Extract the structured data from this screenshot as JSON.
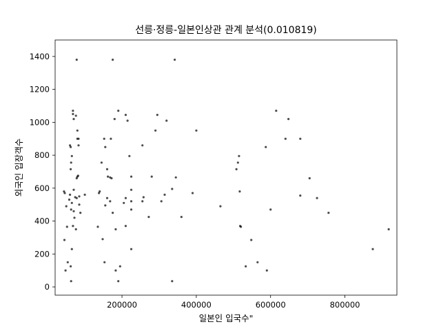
{
  "chart_data": {
    "type": "scatter",
    "title": "선릉·정릉-일본인상관 관계 분석(0.010819)",
    "xlabel": "일본인 입국수\"",
    "ylabel": "외국인 입장객수",
    "xlim": [
      20000,
      940000
    ],
    "ylim": [
      -50,
      1500
    ],
    "xticks": [
      200000,
      400000,
      600000,
      800000
    ],
    "xtick_labels": [
      "200000",
      "400000",
      "600000",
      "800000"
    ],
    "yticks": [
      0,
      200,
      400,
      600,
      800,
      1000,
      1200,
      1400
    ],
    "ytick_labels": [
      "0",
      "200",
      "400",
      "600",
      "800",
      "1000",
      "1200",
      "1400"
    ],
    "grid": false,
    "marker_color": "#000000",
    "marker_opacity": 0.7,
    "points": [
      [
        78000,
        1380
      ],
      [
        175000,
        1380
      ],
      [
        342000,
        1380
      ],
      [
        68000,
        1070
      ],
      [
        190000,
        1070
      ],
      [
        615000,
        1070
      ],
      [
        68000,
        1050
      ],
      [
        76000,
        1040
      ],
      [
        210000,
        1045
      ],
      [
        295000,
        1045
      ],
      [
        70000,
        1020
      ],
      [
        180000,
        1020
      ],
      [
        215000,
        1010
      ],
      [
        320000,
        1010
      ],
      [
        648000,
        1020
      ],
      [
        80000,
        950
      ],
      [
        290000,
        950
      ],
      [
        400000,
        950
      ],
      [
        80000,
        900
      ],
      [
        83000,
        900
      ],
      [
        152000,
        900
      ],
      [
        170000,
        900
      ],
      [
        640000,
        900
      ],
      [
        680000,
        900
      ],
      [
        60000,
        860
      ],
      [
        62000,
        850
      ],
      [
        83000,
        860
      ],
      [
        155000,
        850
      ],
      [
        255000,
        860
      ],
      [
        587000,
        850
      ],
      [
        65000,
        795
      ],
      [
        220000,
        795
      ],
      [
        515000,
        795
      ],
      [
        63000,
        755
      ],
      [
        145000,
        755
      ],
      [
        512000,
        755
      ],
      [
        62000,
        715
      ],
      [
        160000,
        715
      ],
      [
        508000,
        715
      ],
      [
        82000,
        675
      ],
      [
        80000,
        670
      ],
      [
        78000,
        660
      ],
      [
        162000,
        670
      ],
      [
        168000,
        665
      ],
      [
        172000,
        660
      ],
      [
        225000,
        670
      ],
      [
        280000,
        670
      ],
      [
        345000,
        665
      ],
      [
        705000,
        660
      ],
      [
        44000,
        580
      ],
      [
        46000,
        570
      ],
      [
        70000,
        590
      ],
      [
        100000,
        560
      ],
      [
        138000,
        570
      ],
      [
        140000,
        580
      ],
      [
        225000,
        590
      ],
      [
        315000,
        560
      ],
      [
        335000,
        595
      ],
      [
        390000,
        570
      ],
      [
        517000,
        580
      ],
      [
        680000,
        555
      ],
      [
        60000,
        560
      ],
      [
        58000,
        530
      ],
      [
        74000,
        545
      ],
      [
        78000,
        540
      ],
      [
        85000,
        550
      ],
      [
        160000,
        540
      ],
      [
        168000,
        520
      ],
      [
        210000,
        540
      ],
      [
        258000,
        545
      ],
      [
        306000,
        520
      ],
      [
        725000,
        540
      ],
      [
        65000,
        510
      ],
      [
        50000,
        490
      ],
      [
        85000,
        500
      ],
      [
        155000,
        495
      ],
      [
        205000,
        510
      ],
      [
        225000,
        520
      ],
      [
        255000,
        520
      ],
      [
        600000,
        470
      ],
      [
        465000,
        490
      ],
      [
        63000,
        470
      ],
      [
        70000,
        460
      ],
      [
        88000,
        450
      ],
      [
        175000,
        450
      ],
      [
        225000,
        470
      ],
      [
        756000,
        450
      ],
      [
        72000,
        420
      ],
      [
        272000,
        425
      ],
      [
        360000,
        425
      ],
      [
        52000,
        365
      ],
      [
        68000,
        370
      ],
      [
        76000,
        350
      ],
      [
        135000,
        365
      ],
      [
        183000,
        350
      ],
      [
        210000,
        370
      ],
      [
        518000,
        370
      ],
      [
        520000,
        365
      ],
      [
        918000,
        350
      ],
      [
        45000,
        285
      ],
      [
        148000,
        290
      ],
      [
        548000,
        285
      ],
      [
        65000,
        230
      ],
      [
        225000,
        230
      ],
      [
        875000,
        230
      ],
      [
        54000,
        150
      ],
      [
        153000,
        150
      ],
      [
        565000,
        150
      ],
      [
        62000,
        125
      ],
      [
        48000,
        100
      ],
      [
        183000,
        100
      ],
      [
        195000,
        125
      ],
      [
        533000,
        125
      ],
      [
        590000,
        100
      ],
      [
        63000,
        35
      ],
      [
        190000,
        35
      ],
      [
        335000,
        35
      ]
    ]
  }
}
